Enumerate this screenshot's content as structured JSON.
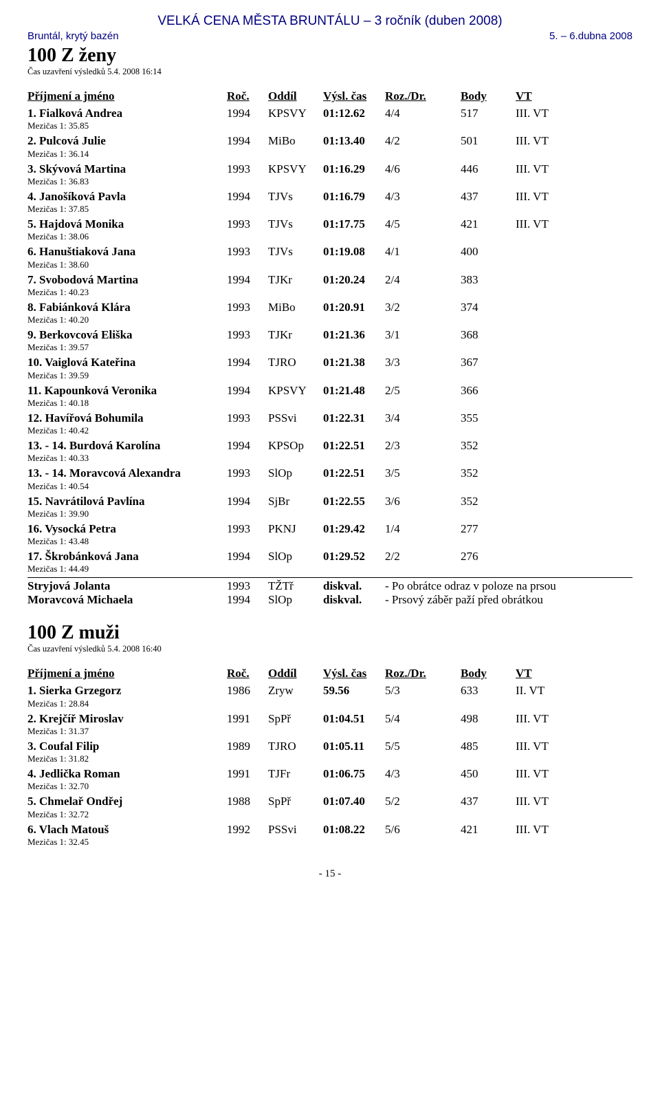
{
  "header": {
    "title": "VELKÁ CENA MĚSTA BRUNTÁLU – 3 ročník (duben 2008)",
    "venue": "Bruntál, krytý bazén",
    "date": "5. – 6.dubna 2008"
  },
  "table_header": {
    "name": "Příjmení a jméno",
    "year": "Roč.",
    "club": "Oddíl",
    "time": "Výsl. čas",
    "heat": "Roz./Dr.",
    "pts": "Body",
    "vt": "VT"
  },
  "event1": {
    "title": "100 Z ženy",
    "closing": "Čas uzavření výsledků 5.4. 2008 16:14",
    "rows": [
      {
        "name": "1. Fialková Andrea",
        "year": "1994",
        "club": "KPSVY",
        "time": "01:12.62",
        "heat": "4/4",
        "pts": "517",
        "vt": "III. VT",
        "split": "Mezičas 1: 35.85"
      },
      {
        "name": "2. Pulcová Julie",
        "year": "1994",
        "club": "MiBo",
        "time": "01:13.40",
        "heat": "4/2",
        "pts": "501",
        "vt": "III. VT",
        "split": "Mezičas 1: 36.14"
      },
      {
        "name": "3. Skývová Martina",
        "year": "1993",
        "club": "KPSVY",
        "time": "01:16.29",
        "heat": "4/6",
        "pts": "446",
        "vt": "III. VT",
        "split": "Mezičas 1: 36.83"
      },
      {
        "name": "4. Janošíková Pavla",
        "year": "1994",
        "club": "TJVs",
        "time": "01:16.79",
        "heat": "4/3",
        "pts": "437",
        "vt": "III. VT",
        "split": "Mezičas 1: 37.85"
      },
      {
        "name": "5. Hajdová Monika",
        "year": "1993",
        "club": "TJVs",
        "time": "01:17.75",
        "heat": "4/5",
        "pts": "421",
        "vt": "III. VT",
        "split": "Mezičas 1: 38.06"
      },
      {
        "name": "6. Hanuštiaková Jana",
        "year": "1993",
        "club": "TJVs",
        "time": "01:19.08",
        "heat": "4/1",
        "pts": "400",
        "vt": "",
        "split": "Mezičas 1: 38.60"
      },
      {
        "name": "7. Svobodová Martina",
        "year": "1994",
        "club": "TJKr",
        "time": "01:20.24",
        "heat": "2/4",
        "pts": "383",
        "vt": "",
        "split": "Mezičas 1: 40.23"
      },
      {
        "name": "8. Fabiánková Klára",
        "year": "1993",
        "club": "MiBo",
        "time": "01:20.91",
        "heat": "3/2",
        "pts": "374",
        "vt": "",
        "split": "Mezičas 1: 40.20"
      },
      {
        "name": "9. Berkovcová Eliška",
        "year": "1993",
        "club": "TJKr",
        "time": "01:21.36",
        "heat": "3/1",
        "pts": "368",
        "vt": "",
        "split": "Mezičas 1: 39.57"
      },
      {
        "name": "10. Vaiglová Kateřina",
        "year": "1994",
        "club": "TJRO",
        "time": "01:21.38",
        "heat": "3/3",
        "pts": "367",
        "vt": "",
        "split": "Mezičas 1: 39.59"
      },
      {
        "name": "11. Kapounková Veronika",
        "year": "1994",
        "club": "KPSVY",
        "time": "01:21.48",
        "heat": "2/5",
        "pts": "366",
        "vt": "",
        "split": "Mezičas 1: 40.18"
      },
      {
        "name": "12. Havířová Bohumila",
        "year": "1993",
        "club": "PSSvi",
        "time": "01:22.31",
        "heat": "3/4",
        "pts": "355",
        "vt": "",
        "split": "Mezičas 1: 40.42"
      },
      {
        "name": "13. - 14. Burdová Karolína",
        "year": "1994",
        "club": "KPSOp",
        "time": "01:22.51",
        "heat": "2/3",
        "pts": "352",
        "vt": "",
        "split": "Mezičas 1: 40.33"
      },
      {
        "name": "13. - 14. Moravcová Alexandra",
        "year": "1993",
        "club": "SlOp",
        "time": "01:22.51",
        "heat": "3/5",
        "pts": "352",
        "vt": "",
        "split": "Mezičas 1: 40.54"
      },
      {
        "name": "15. Navrátilová Pavlína",
        "year": "1994",
        "club": "SjBr",
        "time": "01:22.55",
        "heat": "3/6",
        "pts": "352",
        "vt": "",
        "split": "Mezičas 1: 39.90"
      },
      {
        "name": "16. Vysocká Petra",
        "year": "1993",
        "club": "PKNJ",
        "time": "01:29.42",
        "heat": "1/4",
        "pts": "277",
        "vt": "",
        "split": "Mezičas 1: 43.48"
      },
      {
        "name": "17. Škrobánková Jana",
        "year": "1994",
        "club": "SlOp",
        "time": "01:29.52",
        "heat": "2/2",
        "pts": "276",
        "vt": "",
        "split": "Mezičas 1: 44.49"
      }
    ],
    "dq": [
      {
        "name": "Stryjová Jolanta",
        "year": "1993",
        "club": "TŽTř",
        "time": "diskval.",
        "reason": "- Po obrátce odraz v poloze na prsou"
      },
      {
        "name": "Moravcová Michaela",
        "year": "1994",
        "club": "SlOp",
        "time": "diskval.",
        "reason": "- Prsový záběr paží před obrátkou"
      }
    ]
  },
  "event2": {
    "title": "100 Z muži",
    "closing": "Čas uzavření výsledků 5.4. 2008 16:40",
    "rows": [
      {
        "name": "1. Sierka Grzegorz",
        "year": "1986",
        "club": "Zryw",
        "time": "59.56",
        "heat": "5/3",
        "pts": "633",
        "vt": "II. VT",
        "split": "Mezičas 1: 28.84"
      },
      {
        "name": "2. Krejčíř Miroslav",
        "year": "1991",
        "club": "SpPř",
        "time": "01:04.51",
        "heat": "5/4",
        "pts": "498",
        "vt": "III. VT",
        "split": "Mezičas 1: 31.37"
      },
      {
        "name": "3. Coufal Filip",
        "year": "1989",
        "club": "TJRO",
        "time": "01:05.11",
        "heat": "5/5",
        "pts": "485",
        "vt": "III. VT",
        "split": "Mezičas 1: 31.82"
      },
      {
        "name": "4. Jedlička Roman",
        "year": "1991",
        "club": "TJFr",
        "time": "01:06.75",
        "heat": "4/3",
        "pts": "450",
        "vt": "III. VT",
        "split": "Mezičas 1: 32.70"
      },
      {
        "name": "5. Chmelař Ondřej",
        "year": "1988",
        "club": "SpPř",
        "time": "01:07.40",
        "heat": "5/2",
        "pts": "437",
        "vt": "III. VT",
        "split": "Mezičas 1: 32.72"
      },
      {
        "name": "6. Vlach Matouš",
        "year": "1992",
        "club": "PSSvi",
        "time": "01:08.22",
        "heat": "5/6",
        "pts": "421",
        "vt": "III. VT",
        "split": "Mezičas 1: 32.45"
      }
    ]
  },
  "footer": "- 15 -"
}
